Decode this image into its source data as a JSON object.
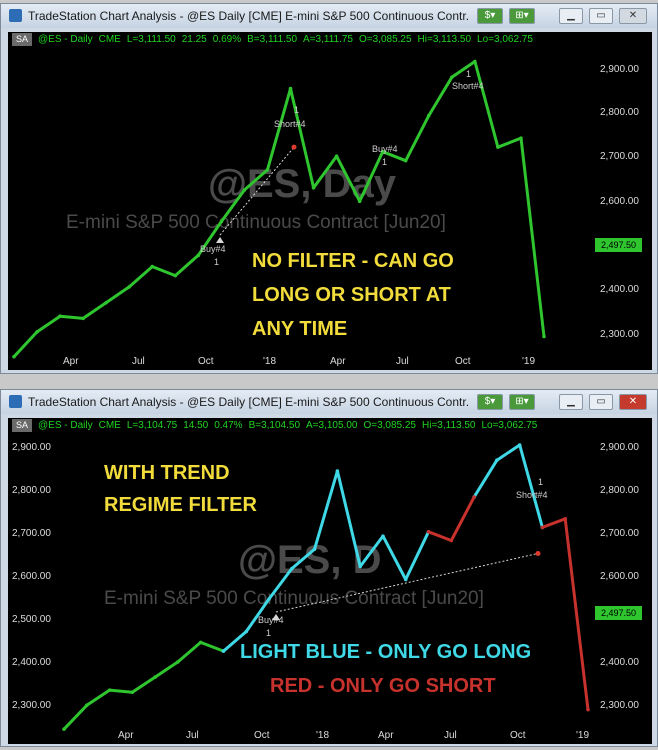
{
  "windows": [
    {
      "title": "TradeStation Chart Analysis - @ES Daily [CME] E-mini S&P 500 Continuous Contr...",
      "header": {
        "sa": "SA",
        "symbol": "@ES - Daily",
        "exchange": "CME",
        "last": "L=3,111.50",
        "change": "21.25",
        "change_pct": "0.69%",
        "bid": "B=3,111.50",
        "ask": "A=3,111.75",
        "open": "O=3,085.25",
        "high": "Hi=3,113.50",
        "low": "Lo=3,062.75"
      },
      "watermark_symbol": "@ES, Day",
      "watermark_name": "E-mini S&P 500 Continuous Contract [Jun20]",
      "annotation": [
        "NO FILTER - CAN GO",
        "LONG OR SHORT AT",
        "ANY TIME"
      ],
      "annotation_color": "#f2dc3c",
      "price_tag": "2,497.50",
      "markers": {
        "buy": "Buy#4",
        "short": "Short#4",
        "one": "1"
      },
      "close_button_state": "normal"
    },
    {
      "title": "TradeStation Chart Analysis - @ES Daily [CME] E-mini S&P 500 Continuous Contr...",
      "header": {
        "sa": "SA",
        "symbol": "@ES - Daily",
        "exchange": "CME",
        "last": "L=3,104.75",
        "change": "14.50",
        "change_pct": "0.47%",
        "bid": "B=3,104.50",
        "ask": "A=3,105.00",
        "open": "O=3,085.25",
        "high": "Hi=3,113.50",
        "low": "Lo=3,062.75"
      },
      "watermark_symbol": "@ES, D",
      "watermark_name": "E-mini S&P 500 Continuous Contract [Jun20]",
      "annotation": [
        "WITH TREND",
        "REGIME FILTER"
      ],
      "annotation_color": "#f2dc3c",
      "legend": [
        {
          "text": "LIGHT BLUE - ONLY GO LONG",
          "color": "#3fd8e6"
        },
        {
          "text": "RED - ONLY GO SHORT",
          "color": "#c8322c"
        }
      ],
      "price_tag": "2,497.50",
      "markers": {
        "buy": "Buy#4",
        "short": "Short#4",
        "one": "1"
      },
      "close_button_state": "alert"
    }
  ],
  "colors": {
    "bars_default": "#2ec52e",
    "bars_long": "#3fd8e6",
    "bars_short": "#c8322c",
    "header_text": "#21d321"
  },
  "icons": {
    "app": "tradestation-app-icon",
    "dollar": "dollar-menu-icon",
    "chart": "chart-menu-icon",
    "minimize": "minimize-icon",
    "maximize": "maximize-icon",
    "close": "close-icon"
  },
  "chart_data": [
    {
      "type": "line",
      "title": "",
      "xlabel": "",
      "ylabel": "",
      "ylim": [
        2250,
        2960
      ],
      "x_ticks": [
        "Apr",
        "Jul",
        "Oct",
        "'18",
        "Apr",
        "Jul",
        "Oct",
        "'19"
      ],
      "y_ticks": [
        "2,300.00",
        "2,400.00",
        "2,500.00",
        "2,600.00",
        "2,700.00",
        "2,800.00",
        "2,900.00"
      ],
      "x": [
        "2017-01",
        "2017-02",
        "2017-03",
        "2017-04",
        "2017-05",
        "2017-06",
        "2017-07",
        "2017-08",
        "2017-09",
        "2017-10",
        "2017-11",
        "2017-12",
        "2018-01",
        "2018-02",
        "2018-03",
        "2018-04",
        "2018-05",
        "2018-06",
        "2018-07",
        "2018-08",
        "2018-09",
        "2018-10",
        "2018-11",
        "2018-12"
      ],
      "series": [
        {
          "color": "#2ec52e",
          "values": [
            2275,
            2330,
            2365,
            2360,
            2395,
            2430,
            2475,
            2455,
            2500,
            2575,
            2645,
            2690,
            2870,
            2650,
            2720,
            2620,
            2730,
            2710,
            2810,
            2895,
            2930,
            2740,
            2760,
            2320
          ]
        }
      ],
      "trade_markers": [
        {
          "label": "Buy#4",
          "value": 2545
        },
        {
          "label": "Short#4",
          "value": 2740
        }
      ],
      "last_price": 2497.5
    },
    {
      "type": "line",
      "title": "",
      "xlabel": "",
      "ylabel": "",
      "ylim": [
        2250,
        2960
      ],
      "x_ticks": [
        "Apr",
        "Jul",
        "Oct",
        "'18",
        "Apr",
        "Jul",
        "Oct",
        "'19"
      ],
      "y_ticks": [
        "2,300.00",
        "2,400.00",
        "2,500.00",
        "2,600.00",
        "2,700.00",
        "2,800.00",
        "2,900.00"
      ],
      "x": [
        "2017-01",
        "2017-02",
        "2017-03",
        "2017-04",
        "2017-05",
        "2017-06",
        "2017-07",
        "2017-08",
        "2017-09",
        "2017-10",
        "2017-11",
        "2017-12",
        "2018-01",
        "2018-02",
        "2018-03",
        "2018-04",
        "2018-05",
        "2018-06",
        "2018-07",
        "2018-08",
        "2018-09",
        "2018-10",
        "2018-11",
        "2018-12"
      ],
      "series": [
        {
          "color": "#2ec52e",
          "regime": "default",
          "values": [
            2275,
            2330,
            2365,
            2360,
            2395,
            2430,
            2475,
            2455,
            null,
            null,
            null,
            null,
            null,
            null,
            null,
            null,
            null,
            null,
            null,
            null,
            null,
            null,
            null,
            null
          ]
        },
        {
          "color": "#3fd8e6",
          "regime": "long",
          "values": [
            null,
            null,
            null,
            null,
            null,
            null,
            null,
            2455,
            2500,
            2575,
            2645,
            2690,
            2870,
            2650,
            2720,
            2620,
            2730,
            null,
            2810,
            2895,
            2930,
            2740,
            null,
            null
          ]
        },
        {
          "color": "#c8322c",
          "regime": "short",
          "values": [
            null,
            null,
            null,
            null,
            null,
            null,
            null,
            null,
            null,
            null,
            null,
            null,
            null,
            null,
            null,
            null,
            2730,
            2710,
            2810,
            null,
            null,
            2740,
            2760,
            2320
          ]
        }
      ],
      "trade_markers": [
        {
          "label": "Buy#4",
          "value": 2545
        },
        {
          "label": "Short#4",
          "value": 2680
        }
      ],
      "last_price": 2497.5
    }
  ]
}
